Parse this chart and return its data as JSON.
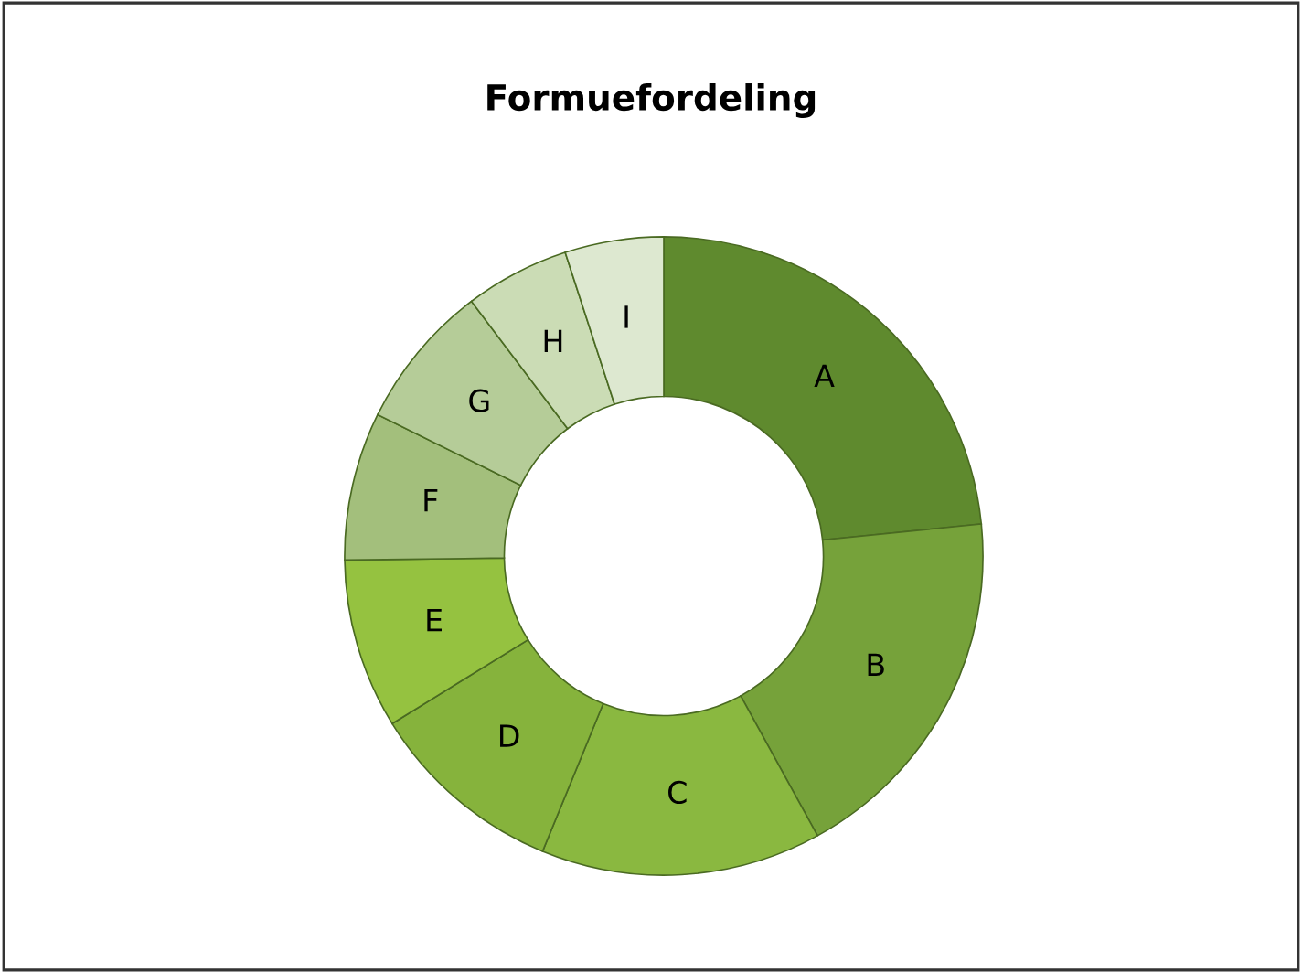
{
  "chart_data": {
    "type": "donut",
    "title": "Formuefordeling",
    "categories": [
      "A",
      "B",
      "C",
      "D",
      "E",
      "F",
      "G",
      "H",
      "I"
    ],
    "values": [
      23.4,
      18.6,
      14.2,
      10,
      8.6,
      7.5,
      7.4,
      5.3,
      5.0
    ],
    "colors": [
      "#5f8a2e",
      "#76a23a",
      "#8ab840",
      "#86b33c",
      "#95c240",
      "#a3bf7c",
      "#b5cc98",
      "#cbdcb5",
      "#dde8d0"
    ],
    "legend": false
  }
}
